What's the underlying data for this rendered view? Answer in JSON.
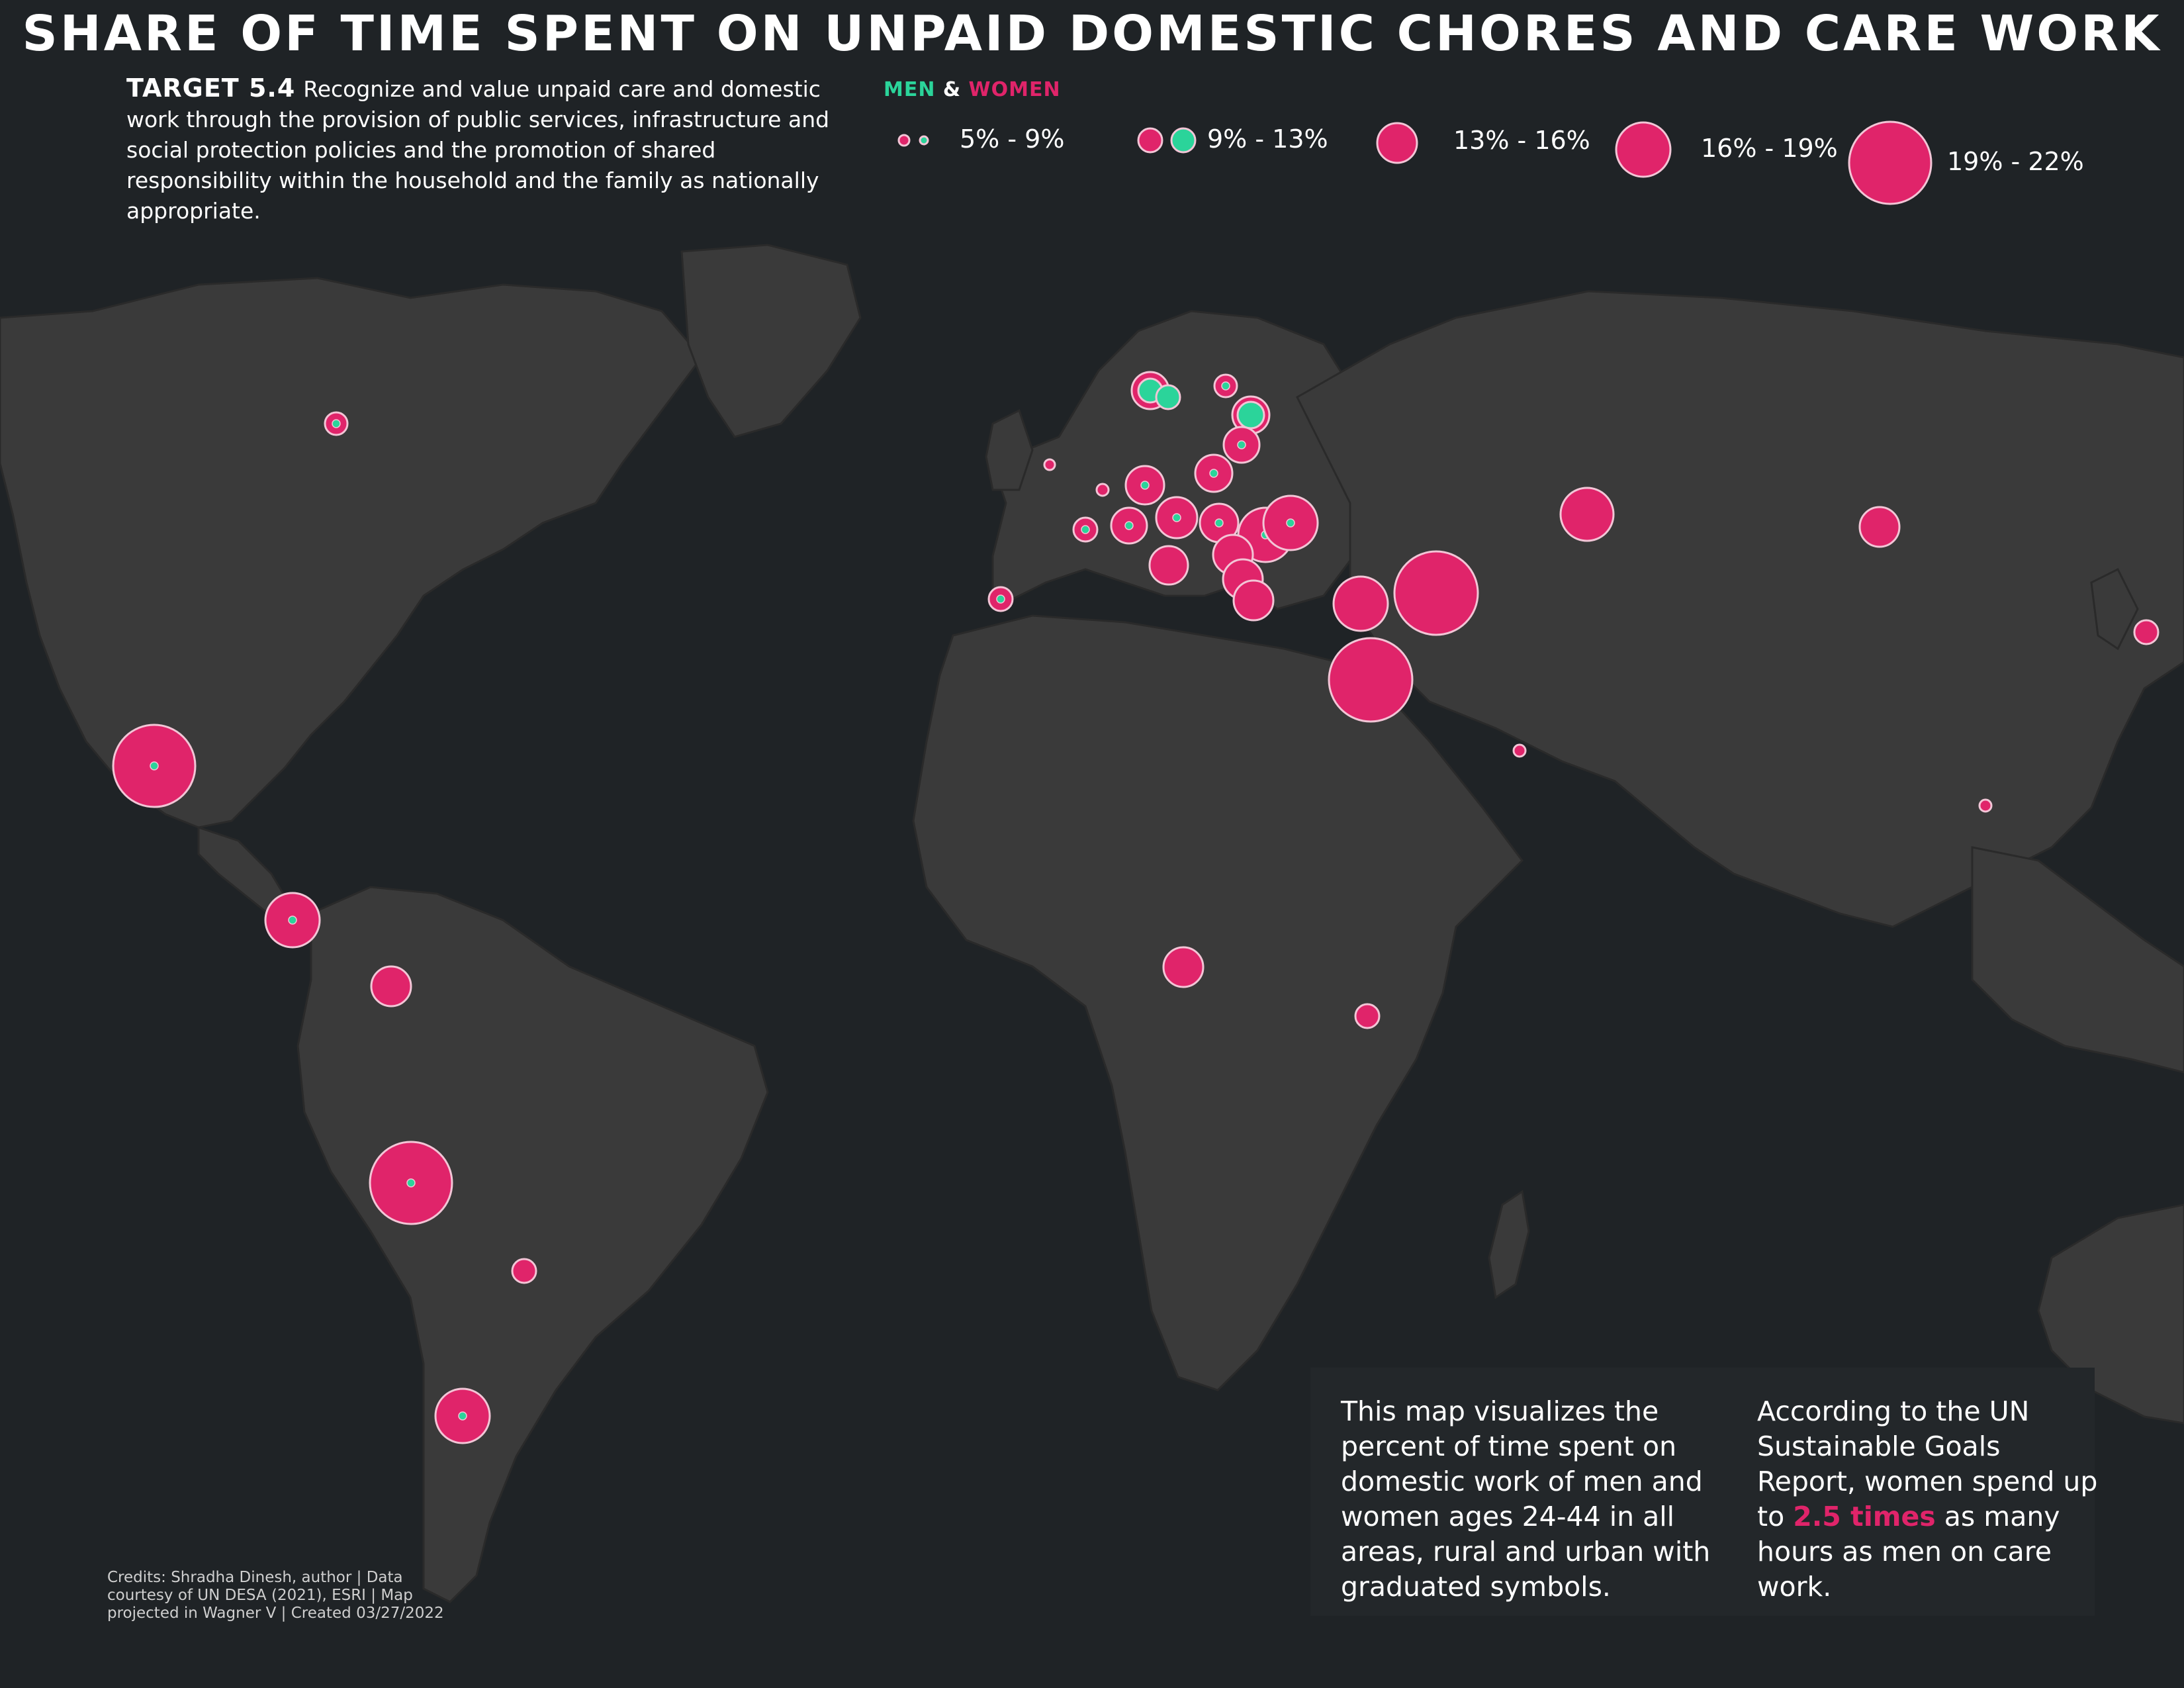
{
  "title": "SHARE OF TIME SPENT ON UNPAID DOMESTIC CHORES AND CARE WORK",
  "target": {
    "label": "TARGET 5.4",
    "text": "Recognize and value unpaid care and domestic work through the provision of public services, infrastructure and social protection policies and the promotion of shared responsibility within the household and the family as nationally appropriate."
  },
  "legend": {
    "men_label": "MEN",
    "amp": "&",
    "women_label": "WOMEN",
    "classes": [
      "5% - 9%",
      "9% - 13%",
      "13% - 16%",
      "16% - 19%",
      "19% - 22%"
    ]
  },
  "colors": {
    "background": "#1f2326",
    "land": "#3a3a3a",
    "borders": "#2a2a2a",
    "women": "#e0246a",
    "men": "#2bd49a",
    "circle_stroke": "#f2c5d6"
  },
  "callout": {
    "left_text": "This map visualizes the percent of time spent on domestic work of men and women ages 24-44 in all areas, rural and urban with graduated symbols.",
    "right_pre": "According to the UN Sustainable Goals Report, women spend up to ",
    "right_highlight": "2.5 times",
    "right_post": " as many hours as men on care work."
  },
  "credits": "Credits: Shradha Dinesh, author | Data courtesy of UN DESA (2021), ESRI | Map projected in Wagner V | Created 03/27/2022"
}
